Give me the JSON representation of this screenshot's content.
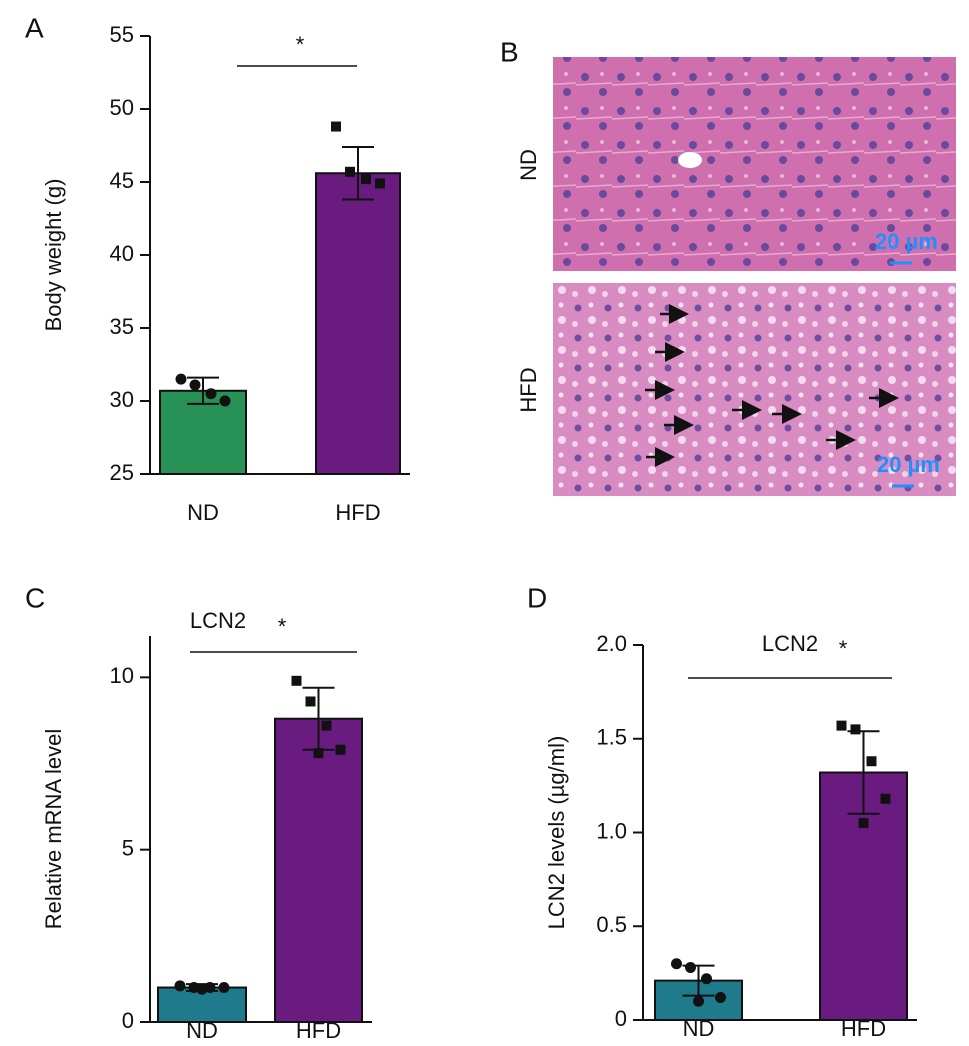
{
  "chart_data": [
    {
      "type": "bar",
      "panel": "A",
      "ylabel": "Body weight (g)",
      "annotation": "*",
      "categories": [
        "ND",
        "HFD"
      ],
      "values": [
        30.7,
        45.6
      ],
      "errors": [
        0.9,
        1.8
      ],
      "colors": [
        "#279156",
        "#6a1b80"
      ],
      "points": [
        [
          31.5,
          31.1,
          30.5,
          30.0
        ],
        [
          48.8,
          45.7,
          45.2,
          44.9
        ]
      ],
      "ylim": [
        25,
        55
      ],
      "yticks": [
        25,
        30,
        35,
        40,
        45,
        50,
        55
      ]
    },
    {
      "type": "bar",
      "panel": "C",
      "ylabel": "Relative mRNA level",
      "subtitle": "LCN2",
      "annotation": "*",
      "categories": [
        "ND",
        "HFD"
      ],
      "values": [
        1.0,
        8.8
      ],
      "errors": [
        0.1,
        0.9
      ],
      "colors": [
        "#1f7a8c",
        "#6a1b80"
      ],
      "points": [
        [
          1.05,
          1.0,
          1.0,
          1.0,
          0.95
        ],
        [
          9.9,
          9.3,
          8.6,
          7.9,
          7.8
        ]
      ],
      "ylim": [
        0,
        11.2
      ],
      "yticks": [
        0,
        5,
        10
      ]
    },
    {
      "type": "bar",
      "panel": "D",
      "ylabel": "LCN2 levels (µg/ml)",
      "subtitle": "LCN2",
      "annotation": "*",
      "categories": [
        "ND",
        "HFD"
      ],
      "values": [
        0.21,
        1.32
      ],
      "errors": [
        0.08,
        0.22
      ],
      "colors": [
        "#1f7a8c",
        "#6a1b80"
      ],
      "points": [
        [
          0.3,
          0.28,
          0.22,
          0.12,
          0.1
        ],
        [
          1.57,
          1.55,
          1.38,
          1.18,
          1.05
        ]
      ],
      "ylim": [
        0,
        2
      ],
      "yticks": [
        0,
        0.5,
        {
          "value": 1,
          "label": "1.0"
        },
        1.5,
        {
          "value": 2,
          "label": "2.0"
        }
      ]
    }
  ],
  "micrograph": {
    "panel": "B",
    "rows": [
      "ND",
      "HFD"
    ],
    "scale_bar": "20 µm"
  }
}
